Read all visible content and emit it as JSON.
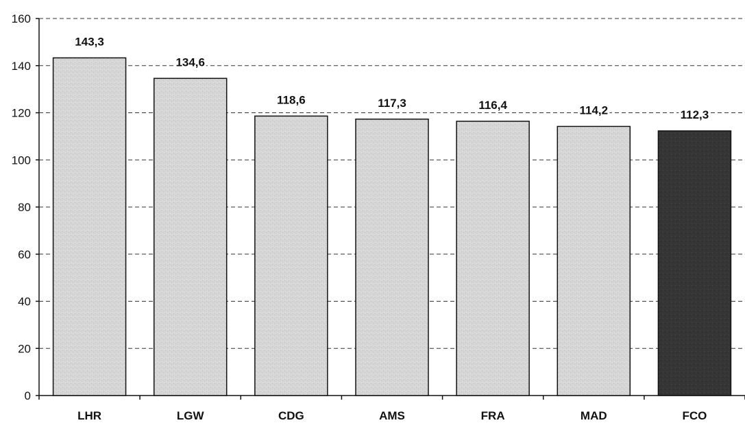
{
  "chart_data": {
    "type": "bar",
    "categories": [
      "LHR",
      "LGW",
      "CDG",
      "AMS",
      "FRA",
      "MAD",
      "FCO"
    ],
    "values": [
      143.3,
      134.6,
      118.6,
      117.3,
      116.4,
      114.2,
      112.3
    ],
    "data_labels": [
      "143,3",
      "134,6",
      "118,6",
      "117,3",
      "116,4",
      "114,2",
      "112,3"
    ],
    "highlight_category": "FCO",
    "ylim": [
      0,
      160
    ],
    "yticks": [
      0,
      20,
      40,
      60,
      80,
      100,
      120,
      140,
      160
    ],
    "grid": "dashed horizontal",
    "legend": "none",
    "colors": {
      "bar": "#dcdcdc",
      "highlight_bar": "#3a3a3a",
      "bar_outline": "#111111",
      "grid": "#333333",
      "axis": "#111111"
    }
  }
}
